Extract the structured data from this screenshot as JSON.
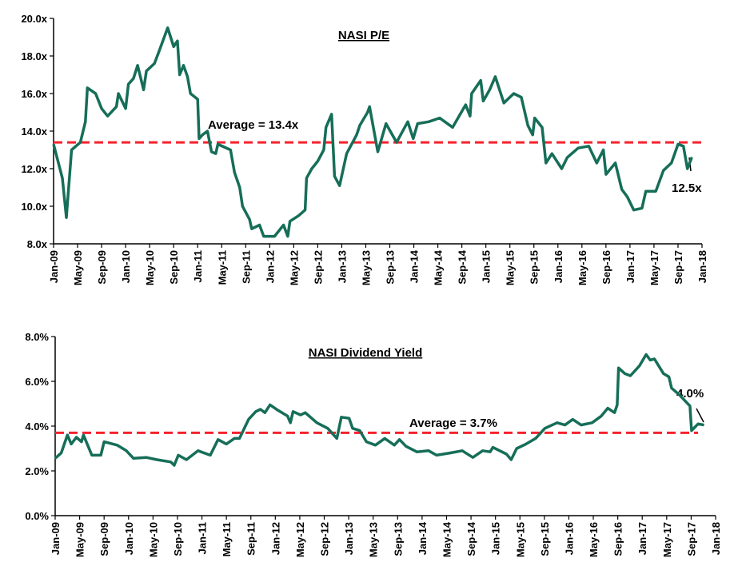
{
  "colors": {
    "series": "#166e58",
    "average": "#f5222d",
    "axis": "#000000"
  },
  "chart_data": [
    {
      "type": "line",
      "title": "NASI P/E",
      "xlabel": "",
      "ylabel": "",
      "ylim": [
        8.0,
        20.0
      ],
      "yticks": [
        "8.0x",
        "10.0x",
        "12.0x",
        "14.0x",
        "16.0x",
        "18.0x",
        "20.0x"
      ],
      "xlim": [
        "2009-01",
        "2018-01"
      ],
      "xticks": [
        "Jan-09",
        "May-09",
        "Sep-09",
        "Jan-10",
        "May-10",
        "Sep-10",
        "Jan-11",
        "May-11",
        "Sep-11",
        "Jan-12",
        "May-12",
        "Sep-12",
        "Jan-13",
        "May-13",
        "Sep-13",
        "Jan-14",
        "May-14",
        "Sep-14",
        "Jan-15",
        "May-15",
        "Sep-15",
        "Jan-16",
        "May-16",
        "Sep-16",
        "Jan-17",
        "May-17",
        "Sep-17",
        "Jan-18"
      ],
      "average": {
        "value": 13.4,
        "label": "Average = 13.4x"
      },
      "end_label": "12.5x",
      "grid": false,
      "points": [
        [
          "2009-01-01",
          13.3
        ],
        [
          "2009-02-15",
          11.5
        ],
        [
          "2009-03-05",
          9.4
        ],
        [
          "2009-04-01",
          13.0
        ],
        [
          "2009-05-15",
          13.4
        ],
        [
          "2009-06-10",
          14.5
        ],
        [
          "2009-06-20",
          16.3
        ],
        [
          "2009-08-01",
          16.0
        ],
        [
          "2009-09-01",
          15.2
        ],
        [
          "2009-10-01",
          14.8
        ],
        [
          "2009-11-15",
          15.3
        ],
        [
          "2009-11-25",
          16.0
        ],
        [
          "2010-01-01",
          15.2
        ],
        [
          "2010-01-15",
          16.5
        ],
        [
          "2010-02-10",
          16.8
        ],
        [
          "2010-03-01",
          17.5
        ],
        [
          "2010-04-01",
          16.2
        ],
        [
          "2010-04-15",
          17.2
        ],
        [
          "2010-05-25",
          17.6
        ],
        [
          "2010-06-20",
          18.3
        ],
        [
          "2010-08-01",
          19.5
        ],
        [
          "2010-09-01",
          18.5
        ],
        [
          "2010-09-20",
          18.8
        ],
        [
          "2010-10-01",
          17.0
        ],
        [
          "2010-10-20",
          17.5
        ],
        [
          "2010-11-10",
          16.9
        ],
        [
          "2010-11-25",
          16.0
        ],
        [
          "2011-01-01",
          15.7
        ],
        [
          "2011-01-08",
          13.6
        ],
        [
          "2011-01-25",
          13.8
        ],
        [
          "2011-02-20",
          14.0
        ],
        [
          "2011-03-10",
          12.9
        ],
        [
          "2011-04-01",
          12.8
        ],
        [
          "2011-04-12",
          13.3
        ],
        [
          "2011-06-15",
          13.0
        ],
        [
          "2011-07-05",
          11.8
        ],
        [
          "2011-08-01",
          11.0
        ],
        [
          "2011-08-15",
          10.0
        ],
        [
          "2011-09-20",
          9.3
        ],
        [
          "2011-10-01",
          8.8
        ],
        [
          "2011-11-10",
          9.0
        ],
        [
          "2011-12-01",
          8.4
        ],
        [
          "2012-01-25",
          8.4
        ],
        [
          "2012-03-10",
          9.0
        ],
        [
          "2012-04-01",
          8.4
        ],
        [
          "2012-04-12",
          9.2
        ],
        [
          "2012-05-25",
          9.5
        ],
        [
          "2012-06-28",
          9.8
        ],
        [
          "2012-07-05",
          11.5
        ],
        [
          "2012-08-01",
          12.0
        ],
        [
          "2012-09-01",
          12.4
        ],
        [
          "2012-10-01",
          13.0
        ],
        [
          "2012-10-12",
          14.2
        ],
        [
          "2012-11-10",
          14.9
        ],
        [
          "2012-11-25",
          11.6
        ],
        [
          "2012-12-20",
          11.1
        ],
        [
          "2013-01-25",
          12.8
        ],
        [
          "2013-03-15",
          13.8
        ],
        [
          "2013-04-01",
          14.3
        ],
        [
          "2013-05-10",
          15.0
        ],
        [
          "2013-05-20",
          15.3
        ],
        [
          "2013-07-01",
          12.9
        ],
        [
          "2013-08-12",
          14.4
        ],
        [
          "2013-10-05",
          13.4
        ],
        [
          "2013-12-01",
          14.5
        ],
        [
          "2013-12-28",
          13.6
        ],
        [
          "2014-01-20",
          14.4
        ],
        [
          "2014-03-15",
          14.5
        ],
        [
          "2014-05-10",
          14.7
        ],
        [
          "2014-07-15",
          14.2
        ],
        [
          "2014-08-28",
          15.0
        ],
        [
          "2014-09-20",
          15.4
        ],
        [
          "2014-10-12",
          14.8
        ],
        [
          "2014-10-20",
          16.0
        ],
        [
          "2014-12-05",
          16.7
        ],
        [
          "2014-12-18",
          15.6
        ],
        [
          "2015-01-20",
          16.2
        ],
        [
          "2015-02-18",
          16.9
        ],
        [
          "2015-04-01",
          15.5
        ],
        [
          "2015-05-20",
          16.0
        ],
        [
          "2015-06-28",
          15.8
        ],
        [
          "2015-08-01",
          14.3
        ],
        [
          "2015-08-25",
          13.8
        ],
        [
          "2015-09-05",
          14.7
        ],
        [
          "2015-10-12",
          14.2
        ],
        [
          "2015-11-01",
          12.3
        ],
        [
          "2015-12-01",
          12.8
        ],
        [
          "2016-01-20",
          12.0
        ],
        [
          "2016-02-18",
          12.6
        ],
        [
          "2016-04-12",
          13.1
        ],
        [
          "2016-06-05",
          13.2
        ],
        [
          "2016-07-15",
          12.3
        ],
        [
          "2016-08-18",
          13.0
        ],
        [
          "2016-09-01",
          11.7
        ],
        [
          "2016-10-18",
          12.3
        ],
        [
          "2016-11-20",
          10.9
        ],
        [
          "2016-12-18",
          10.5
        ],
        [
          "2017-01-20",
          9.8
        ],
        [
          "2017-03-01",
          9.9
        ],
        [
          "2017-03-20",
          10.8
        ],
        [
          "2017-05-10",
          10.8
        ],
        [
          "2017-06-18",
          11.9
        ],
        [
          "2017-07-28",
          12.3
        ],
        [
          "2017-09-01",
          13.3
        ],
        [
          "2017-09-28",
          13.2
        ],
        [
          "2017-10-18",
          12.0
        ],
        [
          "2017-11-10",
          12.6
        ]
      ]
    },
    {
      "type": "line",
      "title": "NASI Dividend Yield",
      "xlabel": "",
      "ylabel": "",
      "ylim": [
        0.0,
        8.0
      ],
      "yticks": [
        "0.0%",
        "2.0%",
        "4.0%",
        "6.0%",
        "8.0%"
      ],
      "xlim": [
        "2009-01",
        "2018-01"
      ],
      "xticks": [
        "Jan-09",
        "May-09",
        "Sep-09",
        "Jan-10",
        "May-10",
        "Sep-10",
        "Jan-11",
        "May-11",
        "Sep-11",
        "Jan-12",
        "May-12",
        "Sep-12",
        "Jan-13",
        "May-13",
        "Sep-13",
        "Jan-14",
        "May-14",
        "Sep-14",
        "Jan-15",
        "May-15",
        "Sep-15",
        "Jan-16",
        "May-16",
        "Sep-16",
        "Jan-17",
        "May-17",
        "Sep-17",
        "Jan-18"
      ],
      "average": {
        "value": 3.7,
        "label": "Average = 3.7%"
      },
      "end_label": "4.0%",
      "grid": false,
      "points": [
        [
          "2009-01-01",
          2.56
        ],
        [
          "2009-02-01",
          2.8
        ],
        [
          "2009-03-01",
          3.6
        ],
        [
          "2009-03-20",
          3.2
        ],
        [
          "2009-04-15",
          3.5
        ],
        [
          "2009-05-10",
          3.3
        ],
        [
          "2009-05-20",
          3.6
        ],
        [
          "2009-07-01",
          2.7
        ],
        [
          "2009-08-15",
          2.7
        ],
        [
          "2009-09-01",
          3.3
        ],
        [
          "2009-11-05",
          3.15
        ],
        [
          "2009-12-20",
          2.9
        ],
        [
          "2010-01-25",
          2.56
        ],
        [
          "2010-03-28",
          2.6
        ],
        [
          "2010-05-20",
          2.5
        ],
        [
          "2010-07-28",
          2.4
        ],
        [
          "2010-08-15",
          2.25
        ],
        [
          "2010-09-05",
          2.7
        ],
        [
          "2010-10-15",
          2.5
        ],
        [
          "2010-12-12",
          2.9
        ],
        [
          "2011-02-12",
          2.7
        ],
        [
          "2011-03-20",
          3.4
        ],
        [
          "2011-05-01",
          3.2
        ],
        [
          "2011-06-10",
          3.45
        ],
        [
          "2011-07-05",
          3.45
        ],
        [
          "2011-08-20",
          4.3
        ],
        [
          "2011-09-25",
          4.65
        ],
        [
          "2011-10-18",
          4.75
        ],
        [
          "2011-11-10",
          4.6
        ],
        [
          "2011-12-05",
          4.95
        ],
        [
          "2012-01-15",
          4.7
        ],
        [
          "2012-03-01",
          4.45
        ],
        [
          "2012-03-15",
          4.15
        ],
        [
          "2012-03-28",
          4.65
        ],
        [
          "2012-05-05",
          4.5
        ],
        [
          "2012-05-28",
          4.6
        ],
        [
          "2012-07-25",
          4.15
        ],
        [
          "2012-09-18",
          3.9
        ],
        [
          "2012-11-03",
          3.45
        ],
        [
          "2012-11-25",
          4.4
        ],
        [
          "2013-01-03",
          4.35
        ],
        [
          "2013-01-20",
          3.9
        ],
        [
          "2013-02-25",
          3.8
        ],
        [
          "2013-03-28",
          3.3
        ],
        [
          "2013-05-12",
          3.15
        ],
        [
          "2013-06-28",
          3.45
        ],
        [
          "2013-08-15",
          3.15
        ],
        [
          "2013-09-10",
          3.4
        ],
        [
          "2013-10-12",
          3.1
        ],
        [
          "2013-12-05",
          2.85
        ],
        [
          "2014-02-03",
          2.9
        ],
        [
          "2014-03-12",
          2.7
        ],
        [
          "2014-05-18",
          2.8
        ],
        [
          "2014-07-18",
          2.9
        ],
        [
          "2014-09-10",
          2.6
        ],
        [
          "2014-10-28",
          2.9
        ],
        [
          "2014-12-05",
          2.85
        ],
        [
          "2014-12-18",
          3.05
        ],
        [
          "2015-02-25",
          2.75
        ],
        [
          "2015-03-18",
          2.5
        ],
        [
          "2015-04-15",
          3.0
        ],
        [
          "2015-06-01",
          3.2
        ],
        [
          "2015-07-18",
          3.45
        ],
        [
          "2015-09-03",
          3.9
        ],
        [
          "2015-11-03",
          4.15
        ],
        [
          "2015-12-12",
          4.05
        ],
        [
          "2016-01-20",
          4.3
        ],
        [
          "2016-03-01",
          4.05
        ],
        [
          "2016-04-25",
          4.15
        ],
        [
          "2016-06-10",
          4.45
        ],
        [
          "2016-07-12",
          4.8
        ],
        [
          "2016-08-15",
          4.6
        ],
        [
          "2016-08-28",
          4.95
        ],
        [
          "2016-09-05",
          6.6
        ],
        [
          "2016-10-05",
          6.35
        ],
        [
          "2016-11-03",
          6.25
        ],
        [
          "2016-12-18",
          6.7
        ],
        [
          "2017-01-20",
          7.2
        ],
        [
          "2017-02-10",
          6.95
        ],
        [
          "2017-03-01",
          7.0
        ],
        [
          "2017-04-15",
          6.35
        ],
        [
          "2017-05-12",
          6.2
        ],
        [
          "2017-05-25",
          5.7
        ],
        [
          "2017-07-03",
          5.4
        ],
        [
          "2017-08-25",
          4.9
        ],
        [
          "2017-09-03",
          3.8
        ],
        [
          "2017-10-05",
          4.1
        ],
        [
          "2017-11-03",
          4.05
        ]
      ]
    }
  ]
}
